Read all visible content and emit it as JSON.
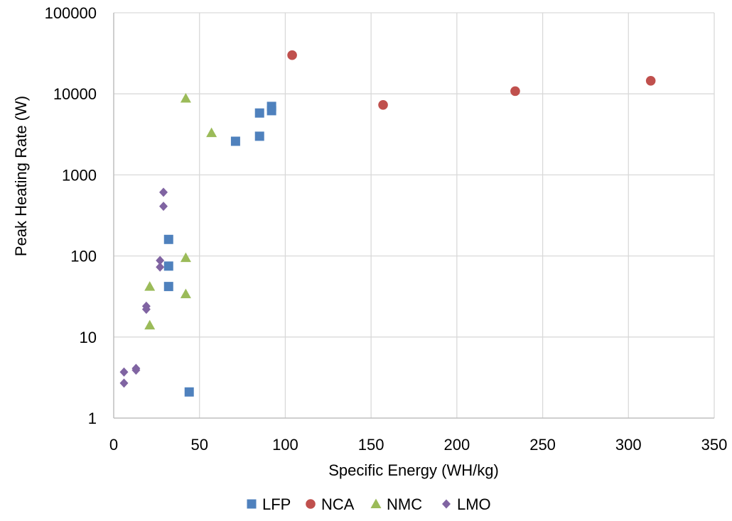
{
  "chart_data": {
    "type": "scatter",
    "title": "",
    "xlabel": "Specific Energy (WH/kg)",
    "ylabel": "Peak Heating Rate (W)",
    "xlim": [
      0,
      350
    ],
    "ylim": [
      1,
      100000
    ],
    "y_scale": "log",
    "x_ticks": [
      0,
      50,
      100,
      150,
      200,
      250,
      300,
      350
    ],
    "y_ticks": [
      1,
      10,
      100,
      1000,
      10000,
      100000
    ],
    "x_tick_labels": [
      "0",
      "50",
      "100",
      "150",
      "200",
      "250",
      "300",
      "350"
    ],
    "y_tick_labels": [
      "1",
      "10",
      "100",
      "1000",
      "10000",
      "100000"
    ],
    "grid": true,
    "legend_position": "bottom",
    "series": [
      {
        "name": "LFP",
        "marker": "square",
        "color": "#4F81BD",
        "points": [
          {
            "x": 32,
            "y": 160
          },
          {
            "x": 32,
            "y": 75
          },
          {
            "x": 32,
            "y": 42
          },
          {
            "x": 44,
            "y": 2.1
          },
          {
            "x": 71,
            "y": 2600
          },
          {
            "x": 85,
            "y": 5800
          },
          {
            "x": 85,
            "y": 3000
          },
          {
            "x": 92,
            "y": 7000
          },
          {
            "x": 92,
            "y": 6200
          }
        ]
      },
      {
        "name": "NCA",
        "marker": "circle",
        "color": "#C0504D",
        "points": [
          {
            "x": 104,
            "y": 30000
          },
          {
            "x": 157,
            "y": 7300
          },
          {
            "x": 234,
            "y": 10800
          },
          {
            "x": 313,
            "y": 14500
          }
        ]
      },
      {
        "name": "NMC",
        "marker": "triangle",
        "color": "#9BBB59",
        "points": [
          {
            "x": 21,
            "y": 42
          },
          {
            "x": 21,
            "y": 14
          },
          {
            "x": 42,
            "y": 8800
          },
          {
            "x": 42,
            "y": 95
          },
          {
            "x": 42,
            "y": 34
          },
          {
            "x": 57,
            "y": 3300
          }
        ]
      },
      {
        "name": "LMO",
        "marker": "diamond",
        "color": "#8064A2",
        "points": [
          {
            "x": 6,
            "y": 3.7
          },
          {
            "x": 6,
            "y": 2.7
          },
          {
            "x": 13,
            "y": 4.1
          },
          {
            "x": 13,
            "y": 3.9
          },
          {
            "x": 19,
            "y": 24
          },
          {
            "x": 19,
            "y": 22
          },
          {
            "x": 27,
            "y": 88
          },
          {
            "x": 27,
            "y": 73
          },
          {
            "x": 29,
            "y": 610
          },
          {
            "x": 29,
            "y": 410
          }
        ]
      }
    ]
  }
}
